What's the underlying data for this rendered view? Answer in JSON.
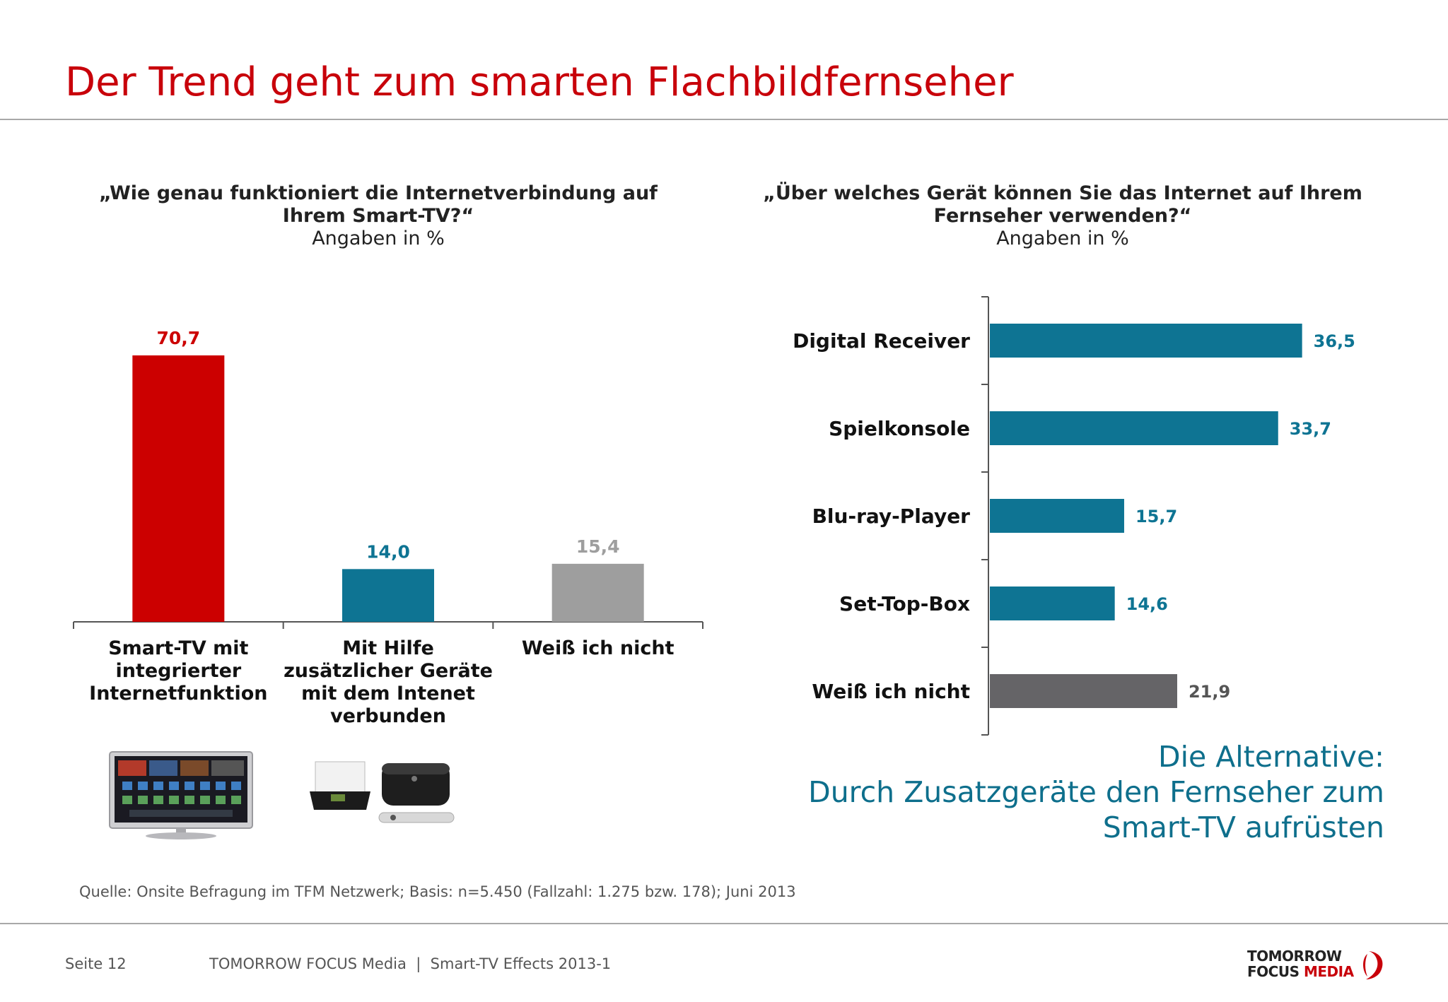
{
  "page": {
    "title": "Der Trend geht zum smarten Flachbildfernseher",
    "source": "Quelle: Onsite Befragung im TFM Netzwerk; Basis: n=5.450 (Fallzahl: 1.275 bzw. 178); Juni 2013",
    "footer_page": "Seite 12",
    "footer_company": "TOMORROW FOCUS Media  |  Smart-TV Effects 2013-1",
    "logo_line1": "TOMORROW",
    "logo_line2a": "FOCUS",
    "logo_line2b": "MEDIA",
    "alt_line1": "Die Alternative:",
    "alt_line2": "Durch Zusatzgeräte den Fernseher zum",
    "alt_line3": "Smart-TV aufrüsten",
    "left_question_l1": "„Wie genau funktioniert die Internetverbindung auf",
    "left_question_l2": "Ihrem Smart-TV?“",
    "left_subtitle": "Angaben in %",
    "right_question_l1": "„Über welches Gerät können Sie das Internet auf Ihrem",
    "right_question_l2": "Fernseher verwenden?“",
    "right_subtitle": "Angaben in %",
    "image_tv": "smart-tv-photo",
    "image_devices": "set-top-box-photo"
  },
  "chart_data": [
    {
      "type": "bar",
      "title": "„Wie genau funktioniert die Internetverbindung auf Ihrem Smart-TV?“",
      "subtitle": "Angaben in %",
      "categories": [
        "Smart-TV mit integrierter Internetfunktion",
        "Mit Hilfe zusätzlicher Geräte mit dem Intenet verbunden",
        "Weiß ich nicht"
      ],
      "category_lines": [
        [
          "Smart-TV mit",
          "integrierter",
          "Internetfunktion"
        ],
        [
          "Mit Hilfe",
          "zusätzlicher Geräte",
          "mit dem Intenet",
          "verbunden"
        ],
        [
          "Weiß ich nicht"
        ]
      ],
      "values": [
        70.7,
        14.0,
        15.4
      ],
      "labels": [
        "70,7",
        "14,0",
        "15,4"
      ],
      "colors": [
        "#cc0000",
        "#0e7493",
        "#9e9e9e"
      ],
      "ylim": [
        0,
        75
      ],
      "grid": false
    },
    {
      "type": "bar",
      "orientation": "horizontal",
      "title": "„Über welches Gerät können Sie das Internet auf Ihrem Fernseher verwenden?“",
      "subtitle": "Angaben in %",
      "categories": [
        "Digital Receiver",
        "Spielkonsole",
        "Blu-ray-Player",
        "Set-Top-Box",
        "Weiß ich nicht"
      ],
      "values": [
        36.5,
        33.7,
        15.7,
        14.6,
        21.9
      ],
      "labels": [
        "36,5",
        "33,7",
        "15,7",
        "14,6",
        "21,9"
      ],
      "colors": [
        "#0e7493",
        "#0e7493",
        "#0e7493",
        "#0e7493",
        "#656467"
      ],
      "label_colors": [
        "#0e7493",
        "#0e7493",
        "#0e7493",
        "#0e7493",
        "#555555"
      ],
      "xlim": [
        0,
        40
      ],
      "grid": false
    }
  ]
}
